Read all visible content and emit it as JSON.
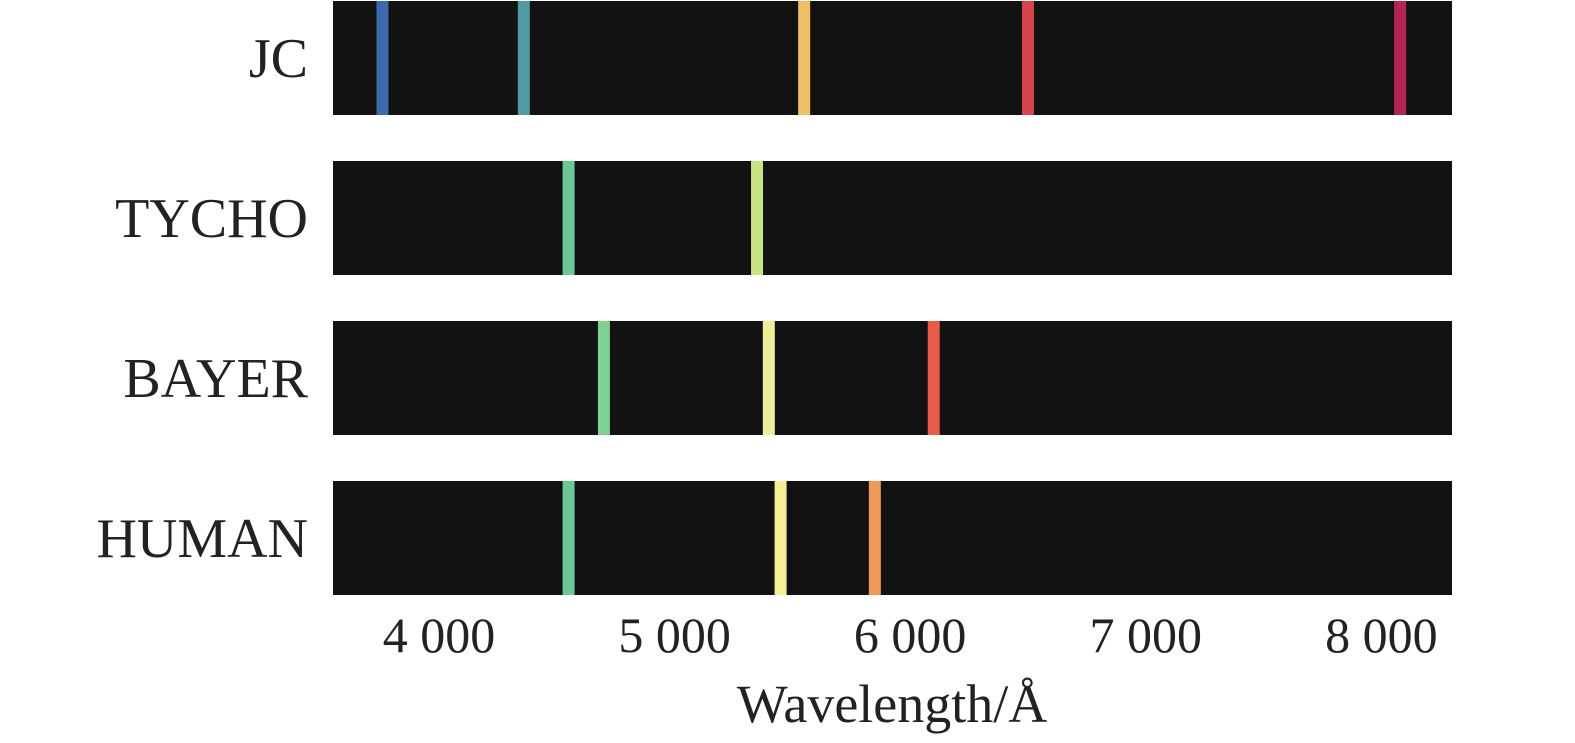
{
  "chart_data": {
    "type": "spectral-lines",
    "xlabel": "Wavelength/Å",
    "xlim": [
      3550,
      8300
    ],
    "x_ticks": [
      4000,
      5000,
      6000,
      7000,
      8000
    ],
    "x_tick_labels": [
      "4 000",
      "5 000",
      "6 000",
      "7 000",
      "8 000"
    ],
    "band_color": "#121212",
    "grid": false,
    "rows": [
      {
        "label": "JC",
        "lines": [
          {
            "wavelength": 3760,
            "color": "#3d69ad"
          },
          {
            "wavelength": 4360,
            "color": "#4f9ba1"
          },
          {
            "wavelength": 5550,
            "color": "#f0c068"
          },
          {
            "wavelength": 6500,
            "color": "#d6444d"
          },
          {
            "wavelength": 8080,
            "color": "#b32654"
          }
        ]
      },
      {
        "label": "TYCHO",
        "lines": [
          {
            "wavelength": 4550,
            "color": "#6cc795"
          },
          {
            "wavelength": 5350,
            "color": "#c7e483"
          }
        ]
      },
      {
        "label": "BAYER",
        "lines": [
          {
            "wavelength": 4700,
            "color": "#7ed191"
          },
          {
            "wavelength": 5400,
            "color": "#eeee9a"
          },
          {
            "wavelength": 6100,
            "color": "#e75c48"
          }
        ]
      },
      {
        "label": "HUMAN",
        "lines": [
          {
            "wavelength": 4550,
            "color": "#6cc795"
          },
          {
            "wavelength": 5450,
            "color": "#f6ef93"
          },
          {
            "wavelength": 5850,
            "color": "#f09a59"
          }
        ]
      }
    ]
  }
}
